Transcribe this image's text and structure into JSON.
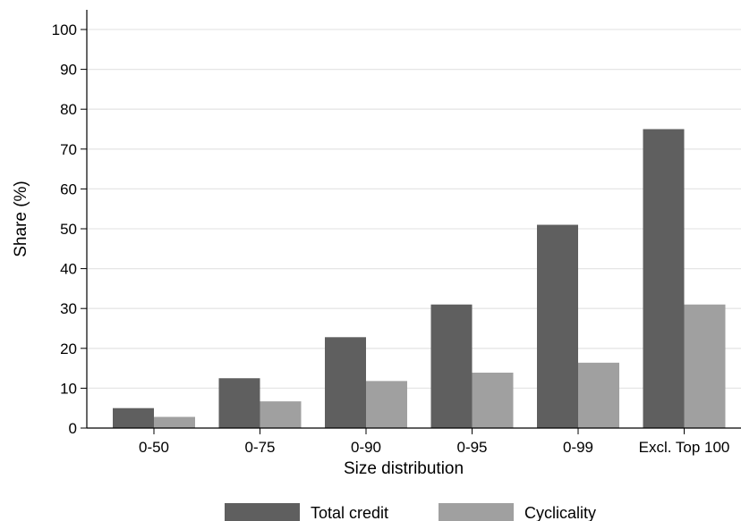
{
  "chart_data": {
    "type": "bar",
    "categories": [
      "0-50",
      "0-75",
      "0-90",
      "0-95",
      "0-99",
      "Excl. Top 100"
    ],
    "series": [
      {
        "name": "Total credit",
        "values": [
          5,
          12.5,
          22.8,
          31,
          51,
          75
        ],
        "color": "#5f5f5f"
      },
      {
        "name": "Cyclicality",
        "values": [
          2.8,
          6.7,
          11.8,
          13.9,
          16.4,
          31
        ],
        "color": "#a0a0a0"
      }
    ],
    "title": "",
    "xlabel": "Size distribution",
    "ylabel": "Share (%)",
    "ylim": [
      0,
      100
    ],
    "yticks": [
      "0",
      "10",
      "20",
      "30",
      "40",
      "50",
      "60",
      "70",
      "80",
      "90",
      "100"
    ],
    "grid": true,
    "legend_position": "bottom"
  }
}
